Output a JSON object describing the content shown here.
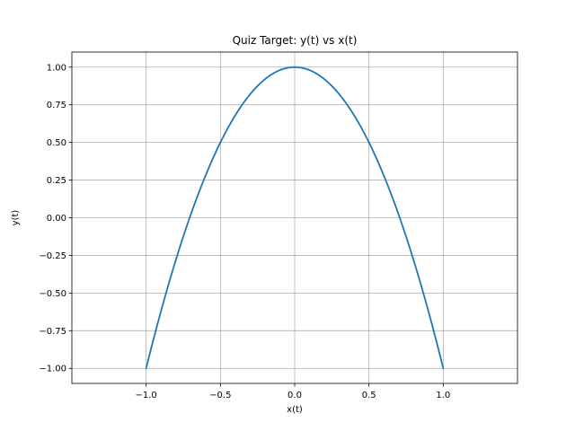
{
  "chart_data": {
    "type": "line",
    "title": "Quiz Target: y(t) vs x(t)",
    "xlabel": "x(t)",
    "ylabel": "y(t)",
    "xlim": [
      -1.5,
      1.5
    ],
    "ylim": [
      -1.1,
      1.1
    ],
    "grid": true,
    "x_ticks": [
      -1.0,
      -0.5,
      0.0,
      0.5,
      1.0
    ],
    "x_tick_labels": [
      "−1.0",
      "−0.5",
      "0.0",
      "0.5",
      "1.0"
    ],
    "y_ticks": [
      -1.0,
      -0.75,
      -0.5,
      -0.25,
      0.0,
      0.25,
      0.5,
      0.75,
      1.0
    ],
    "y_tick_labels": [
      "−1.00",
      "−0.75",
      "−0.50",
      "−0.25",
      "0.00",
      "0.25",
      "0.50",
      "0.75",
      "1.00"
    ],
    "series": [
      {
        "color": "#1f77b4",
        "points": [
          [
            0.0,
            1.0
          ],
          [
            0.259,
            0.866
          ],
          [
            0.5,
            0.5
          ],
          [
            0.707,
            0.0
          ],
          [
            0.866,
            -0.5
          ],
          [
            0.966,
            -0.866
          ],
          [
            1.0,
            -1.0
          ],
          [
            0.966,
            -0.866
          ],
          [
            0.866,
            -0.5
          ],
          [
            0.707,
            0.0
          ],
          [
            0.5,
            0.5
          ],
          [
            0.259,
            0.866
          ],
          [
            0.0,
            1.0
          ]
        ],
        "curve": "lissajous: x = sin(t), y = cos(2t), t from 0 to 2pi"
      }
    ]
  }
}
